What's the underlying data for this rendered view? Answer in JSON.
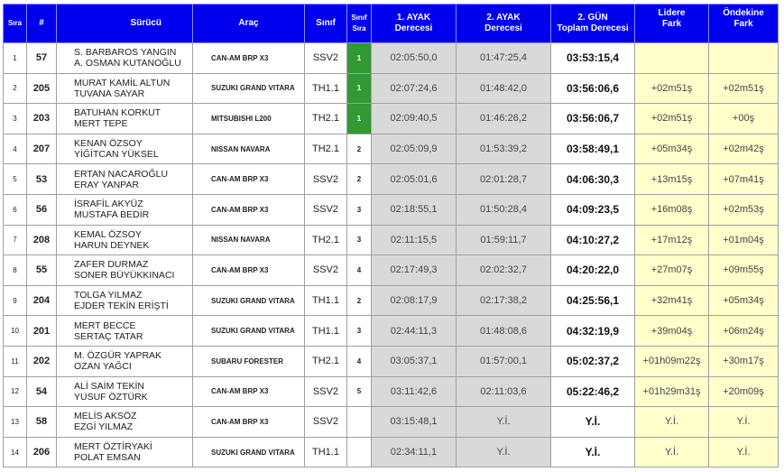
{
  "colors": {
    "header": "#0000ee",
    "class_winner": "#339933",
    "time_cell": "#d9d9d9",
    "diff_cell": "#ffffcc"
  },
  "headers": {
    "sira": "Sıra",
    "num": "#",
    "driver": "Sürücü",
    "car": "Araç",
    "cls": "Sınıf",
    "csira_1": "Sınıf",
    "csira_2": "Sıra",
    "leg1_1": "1. AYAK",
    "leg1_2": "Derecesi",
    "leg2_1": "2. AYAK",
    "leg2_2": "Derecesi",
    "total_1": "2. GÜN",
    "total_2": "Toplam Derecesi",
    "leader_1": "Lidere",
    "leader_2": "Fark",
    "prev_1": "Öndekine",
    "prev_2": "Fark"
  },
  "rows": [
    {
      "sira": "1",
      "num": "57",
      "d1": "S. BARBAROS YANGIN",
      "d2": "A. OSMAN KUTANOĞLU",
      "car": "CAN-AM BRP X3",
      "cls": "SSV2",
      "csira": "1",
      "leg1": "02:05:50,0",
      "leg2": "01:47:25,4",
      "total": "03:53:15,4",
      "leader": "",
      "prev": ""
    },
    {
      "sira": "2",
      "num": "205",
      "d1": "MURAT KAMİL ALTUN",
      "d2": "TUVANA SAYAR",
      "car": "SUZUKI GRAND VITARA",
      "cls": "TH1.1",
      "csira": "1",
      "leg1": "02:07:24,6",
      "leg2": "01:48:42,0",
      "total": "03:56:06,6",
      "leader": "+02m51ş",
      "prev": "+02m51ş"
    },
    {
      "sira": "3",
      "num": "203",
      "d1": "BATUHAN KORKUT",
      "d2": "MERT TEPE",
      "car": "MITSUBISHI L200",
      "cls": "TH2.1",
      "csira": "1",
      "leg1": "02:09:40,5",
      "leg2": "01:46:26,2",
      "total": "03:56:06,7",
      "leader": "+02m51ş",
      "prev": "+00ş"
    },
    {
      "sira": "4",
      "num": "207",
      "d1": "KENAN ÖZSOY",
      "d2": "YİĞİTCAN YÜKSEL",
      "car": "NISSAN NAVARA",
      "cls": "TH2.1",
      "csira": "2",
      "leg1": "02:05:09,9",
      "leg2": "01:53:39,2",
      "total": "03:58:49,1",
      "leader": "+05m34ş",
      "prev": "+02m42ş"
    },
    {
      "sira": "5",
      "num": "53",
      "d1": "ERTAN NACAROĞLU",
      "d2": "ERAY YANPAR",
      "car": "CAN-AM BRP X3",
      "cls": "SSV2",
      "csira": "2",
      "leg1": "02:05:01,6",
      "leg2": "02:01:28,7",
      "total": "04:06:30,3",
      "leader": "+13m15ş",
      "prev": "+07m41ş"
    },
    {
      "sira": "6",
      "num": "56",
      "d1": "İSRAFİL AKYÜZ",
      "d2": "MUSTAFA BEDİR",
      "car": "CAN-AM BRP X3",
      "cls": "SSV2",
      "csira": "3",
      "leg1": "02:18:55,1",
      "leg2": "01:50:28,4",
      "total": "04:09:23,5",
      "leader": "+16m08ş",
      "prev": "+02m53ş"
    },
    {
      "sira": "7",
      "num": "208",
      "d1": "KEMAL ÖZSOY",
      "d2": "HARUN DEYNEK",
      "car": "NISSAN NAVARA",
      "cls": "TH2.1",
      "csira": "3",
      "leg1": "02:11:15,5",
      "leg2": "01:59:11,7",
      "total": "04:10:27,2",
      "leader": "+17m12ş",
      "prev": "+01m04ş"
    },
    {
      "sira": "8",
      "num": "55",
      "d1": "ZAFER DURMAZ",
      "d2": "SONER BÜYÜKKINACI",
      "car": "CAN-AM BRP X3",
      "cls": "SSV2",
      "csira": "4",
      "leg1": "02:17:49,3",
      "leg2": "02:02:32,7",
      "total": "04:20:22,0",
      "leader": "+27m07ş",
      "prev": "+09m55ş"
    },
    {
      "sira": "9",
      "num": "204",
      "d1": "TOLGA YILMAZ",
      "d2": "EJDER TEKİN ERİŞTİ",
      "car": "SUZUKI GRAND VITARA",
      "cls": "TH1.1",
      "csira": "2",
      "leg1": "02:08:17,9",
      "leg2": "02:17:38,2",
      "total": "04:25:56,1",
      "leader": "+32m41ş",
      "prev": "+05m34ş"
    },
    {
      "sira": "10",
      "num": "201",
      "d1": "MERT BECCE",
      "d2": "SERTAÇ TATAR",
      "car": "SUZUKI GRAND VITARA",
      "cls": "TH1.1",
      "csira": "3",
      "leg1": "02:44:11,3",
      "leg2": "01:48:08,6",
      "total": "04:32:19,9",
      "leader": "+39m04ş",
      "prev": "+06m24ş"
    },
    {
      "sira": "11",
      "num": "202",
      "d1": "M. ÖZGÜR YAPRAK",
      "d2": "OZAN YAĞCI",
      "car": "SUBARU FORESTER",
      "cls": "TH2.1",
      "csira": "4",
      "leg1": "03:05:37,1",
      "leg2": "01:57:00,1",
      "total": "05:02:37,2",
      "leader": "+01h09m22ş",
      "prev": "+30m17ş"
    },
    {
      "sira": "12",
      "num": "54",
      "d1": "ALİ SAİM TEKİN",
      "d2": "YUSUF ÖZTÜRK",
      "car": "CAN-AM BRP X3",
      "cls": "SSV2",
      "csira": "5",
      "leg1": "03:11:42,6",
      "leg2": "02:11:03,6",
      "total": "05:22:46,2",
      "leader": "+01h29m31ş",
      "prev": "+20m09ş"
    },
    {
      "sira": "13",
      "num": "58",
      "d1": "MELİS AKSÖZ",
      "d2": "EZGİ YILMAZ",
      "car": "CAN-AM BRP X3",
      "cls": "SSV2",
      "csira": "",
      "leg1": "03:15:48,1",
      "leg2": "Y.İ.",
      "total": "Y.İ.",
      "leader": "Y.İ.",
      "prev": "Y.İ."
    },
    {
      "sira": "14",
      "num": "206",
      "d1": "MERT ÖZTİRYAKİ",
      "d2": "POLAT EMSAN",
      "car": "SUZUKI GRAND VITARA",
      "cls": "TH1.1",
      "csira": "",
      "leg1": "02:34:11,1",
      "leg2": "Y.İ.",
      "total": "Y.İ.",
      "leader": "Y.İ.",
      "prev": "Y.İ."
    }
  ]
}
